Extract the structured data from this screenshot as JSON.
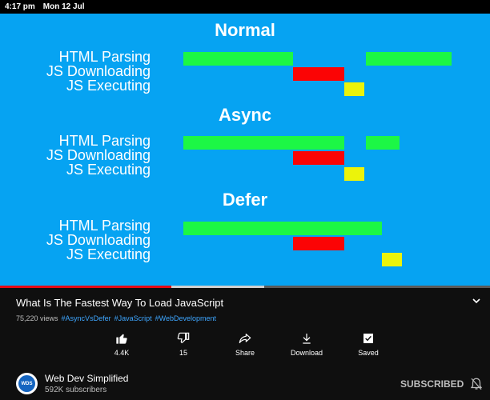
{
  "status_bar": {
    "time": "4:17 pm",
    "date": "Mon 12 Jul"
  },
  "diagram": {
    "colors": {
      "background": "#06a3f2",
      "parsing": "#1cf745",
      "downloading": "#fb0405",
      "executing": "#ecf30a"
    },
    "sections": [
      {
        "title": "Normal",
        "labels": [
          "HTML Parsing",
          "JS Downloading",
          "JS Executing"
        ]
      },
      {
        "title": "Async",
        "labels": [
          "HTML Parsing",
          "JS Downloading",
          "JS Executing"
        ]
      },
      {
        "title": "Defer",
        "labels": [
          "HTML Parsing",
          "JS Downloading",
          "JS Executing"
        ]
      }
    ]
  },
  "player": {
    "progress_played": 0.35,
    "progress_buffered": 0.54
  },
  "video": {
    "title": "What Is The Fastest Way To Load JavaScript",
    "views": "75,220 views",
    "tags": [
      "#AsyncVsDefer",
      "#JavaScript",
      "#WebDevelopment"
    ]
  },
  "actions": {
    "like": {
      "label": "4.4K",
      "icon": "thumbs-up-icon"
    },
    "dislike": {
      "label": "15",
      "icon": "thumbs-down-icon"
    },
    "share": {
      "label": "Share",
      "icon": "share-icon"
    },
    "download": {
      "label": "Download",
      "icon": "download-icon"
    },
    "save": {
      "label": "Saved",
      "icon": "saved-playlist-icon"
    }
  },
  "channel": {
    "name": "Web Dev Simplified",
    "subscribers": "592K subscribers",
    "avatar_text": "WDS",
    "subscribe_label": "SUBSCRIBED"
  }
}
